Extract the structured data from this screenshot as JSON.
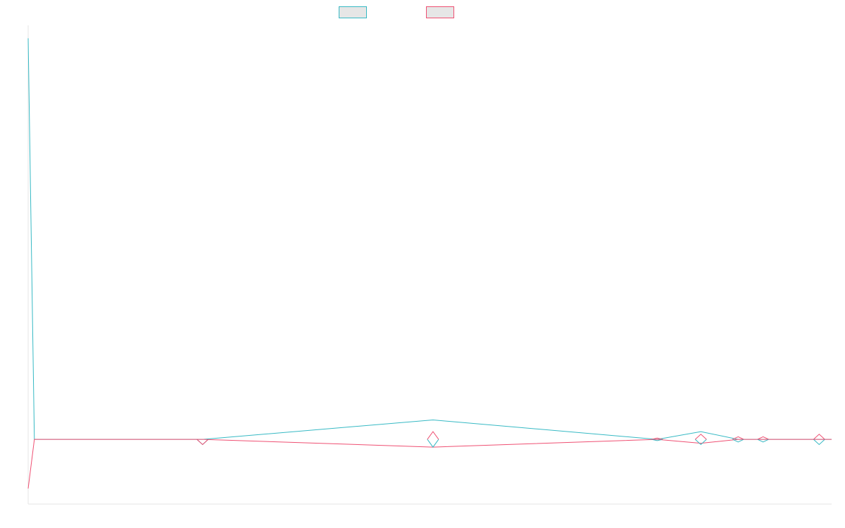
{
  "chart_data": {
    "type": "line",
    "grid": false,
    "legend_position": "top-center",
    "title": "",
    "xlabel": "",
    "ylabel": "",
    "x": [
      0,
      1,
      28,
      65,
      101,
      108,
      114,
      118,
      127,
      129
    ],
    "ylim": [
      -0.5,
      3.2
    ],
    "series": [
      {
        "color": "#36b9c4",
        "fill": "#e6e6e6",
        "values": [
          3.1,
          0,
          0,
          0.15,
          0,
          0.06,
          0,
          0,
          0,
          0
        ]
      },
      {
        "color": "#ef4f72",
        "fill": "#e6e6e6",
        "values": [
          -0.38,
          0,
          0,
          -0.06,
          0,
          -0.03,
          0,
          0,
          0,
          0
        ]
      }
    ],
    "markers": [
      {
        "series": 0,
        "x": 28,
        "dy": -0.04
      },
      {
        "series": 1,
        "x": 28,
        "dy": -0.04
      },
      {
        "series": 0,
        "x": 65,
        "dy": -0.06
      },
      {
        "series": 1,
        "x": 65,
        "dy": 0.06
      },
      {
        "series": 0,
        "x": 101,
        "dy": -0.01
      },
      {
        "series": 1,
        "x": 101,
        "dy": 0.01
      },
      {
        "series": 0,
        "x": 108,
        "dy": -0.04
      },
      {
        "series": 1,
        "x": 108,
        "dy": 0.04
      },
      {
        "series": 0,
        "x": 114,
        "dy": -0.02
      },
      {
        "series": 1,
        "x": 114,
        "dy": 0.02
      },
      {
        "series": 0,
        "x": 118,
        "dy": -0.02
      },
      {
        "series": 1,
        "x": 118,
        "dy": 0.02
      },
      {
        "series": 0,
        "x": 127,
        "dy": -0.04
      },
      {
        "series": 1,
        "x": 127,
        "dy": 0.04
      }
    ]
  }
}
